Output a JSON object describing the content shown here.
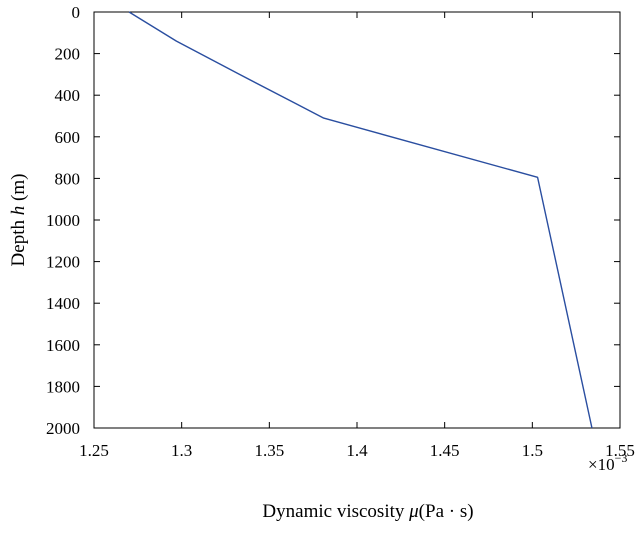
{
  "colors": {
    "series_line": "#2a4ea0",
    "axes": "#000000",
    "background": "#ffffff"
  },
  "chart_data": {
    "type": "line",
    "title": "",
    "xlabel_prefix": "Dynamic viscosity ",
    "xlabel_symbol": "μ",
    "xlabel_unit": "(Pa · s)",
    "ylabel_prefix": "Depth ",
    "ylabel_symbol": "h",
    "ylabel_unit": " (m)",
    "x_multiplier_base": "×10",
    "x_multiplier_exponent": "−3",
    "xlim": [
      1.25,
      1.55
    ],
    "ylim": [
      0,
      2000
    ],
    "y_inverted": true,
    "grid": false,
    "legend": "none",
    "x_ticks": [
      1.25,
      1.3,
      1.35,
      1.4,
      1.45,
      1.5,
      1.55
    ],
    "x_tick_labels": [
      "1.25",
      "1.3",
      "1.35",
      "1.4",
      "1.45",
      "1.5",
      "1.55"
    ],
    "y_ticks": [
      0,
      200,
      400,
      600,
      800,
      1000,
      1200,
      1400,
      1600,
      1800,
      2000
    ],
    "y_tick_labels": [
      "0",
      "200",
      "400",
      "600",
      "800",
      "1000",
      "1200",
      "1400",
      "1600",
      "1800",
      "2000"
    ],
    "series": [
      {
        "x": [
          1.27,
          1.297,
          1.333,
          1.365,
          1.381,
          1.503,
          1.534
        ],
        "y": [
          0,
          140,
          300,
          440,
          510,
          795,
          2000
        ]
      }
    ]
  }
}
